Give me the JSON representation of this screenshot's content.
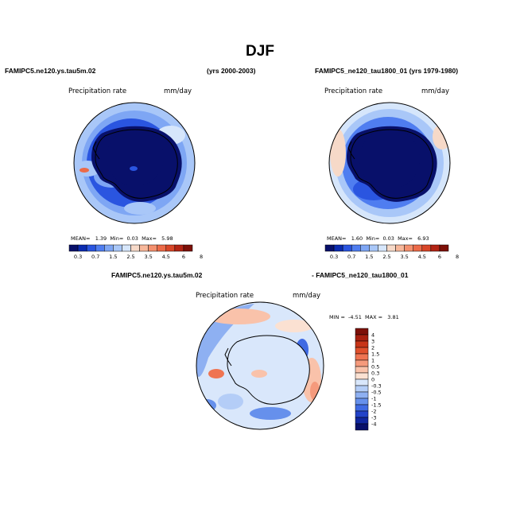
{
  "title": "DJF",
  "panel_left": {
    "case_label": "FAMIPC5.ne120.ys.tau5m.02",
    "years_label": "(yrs 2000-2003)",
    "field_label": "Precipitation rate",
    "units_label": "mm/day",
    "mean_label": "MEAN=",
    "mean_value": "1.39",
    "min_label": "Min=",
    "min_value": "0.03",
    "max_label": "Max=",
    "max_value": "5.98"
  },
  "panel_right": {
    "case_label": "FAMIPC5_ne120_tau1800_01 (yrs 1979-1980)",
    "field_label": "Precipitation rate",
    "units_label": "mm/day",
    "mean_label": "MEAN=",
    "mean_value": "1.60",
    "min_label": "Min=",
    "min_value": "0.03",
    "max_label": "Max=",
    "max_value": "6.93"
  },
  "panel_diff": {
    "case_a_label": "FAMIPC5.ne120.ys.tau5m.02",
    "case_b_label": "- FAMIPC5_ne120_tau1800_01",
    "field_label": "Precipitation rate",
    "units_label": "mm/day",
    "min_label": "MIN =",
    "min_value": "-4.51",
    "max_label": "MAX =",
    "max_value": "3.81"
  },
  "colorbar_horizontal": {
    "labels": [
      "0.3",
      "0.7",
      "1.5",
      "2.5",
      "3.5",
      "4.5",
      "6",
      "8"
    ],
    "colors": [
      "#08106a",
      "#0b2bb0",
      "#2a55e0",
      "#4f7df0",
      "#7ea6f4",
      "#a9c7f8",
      "#d6e6fb",
      "#f6d9c8",
      "#f7b79a",
      "#f4906e",
      "#ec6a48",
      "#d84628",
      "#b32414",
      "#7d1008"
    ]
  },
  "colorbar_vertical": {
    "labels": [
      "4",
      "3",
      "2",
      "1.5",
      "1",
      "0.5",
      "0.3",
      "0",
      "-0.3",
      "-0.5",
      "-1",
      "-1.5",
      "-2",
      "-3",
      "-4"
    ],
    "colors": [
      "#7d1008",
      "#a8200f",
      "#c83518",
      "#e0502c",
      "#ef7452",
      "#f59a7c",
      "#f9c2aa",
      "#fbe1d2",
      "#d9e7fb",
      "#b4cdf7",
      "#8eb0f2",
      "#6690ec",
      "#3f6ae3",
      "#2243c9",
      "#1027a0",
      "#08106a"
    ]
  }
}
